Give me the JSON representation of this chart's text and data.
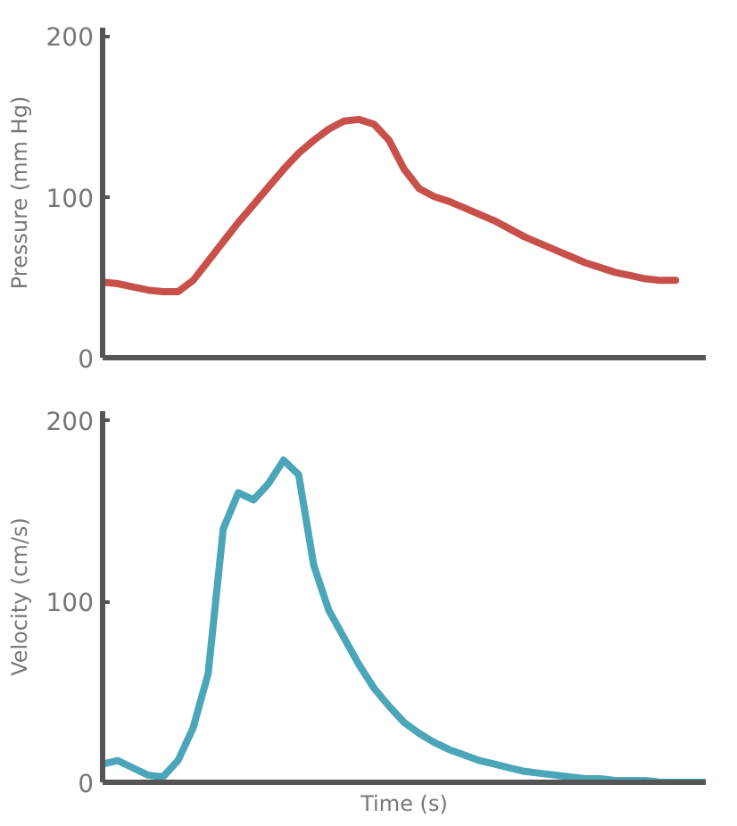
{
  "chart_data": [
    {
      "type": "line",
      "ylabel": "Pressure (mm Hg)",
      "categories": [
        null,
        null,
        null,
        null,
        null,
        null,
        null,
        null,
        null,
        null,
        null,
        null,
        null,
        null,
        null,
        null,
        null,
        null,
        null,
        null,
        null,
        null,
        null,
        null,
        null,
        null,
        null,
        null,
        null,
        null,
        null,
        null,
        null,
        null,
        null,
        null,
        null,
        null,
        null,
        null,
        null
      ],
      "ylim": [
        0,
        205
      ],
      "yticks": [
        0,
        100,
        200
      ],
      "series": [
        {
          "color": "#c8504a",
          "values": [
            47,
            46,
            44,
            42,
            41,
            41,
            48,
            60,
            72,
            84,
            95,
            106,
            117,
            127,
            135,
            142,
            147,
            148,
            145,
            135,
            117,
            105,
            100,
            97,
            93,
            89,
            85,
            80,
            75,
            71,
            67,
            63,
            59,
            56,
            53,
            51,
            49,
            48,
            48,
            null,
            null
          ]
        }
      ]
    },
    {
      "type": "line",
      "xlabel": "Time (s)",
      "ylabel": "Velocity (cm/s)",
      "categories": [
        null,
        null,
        null,
        null,
        null,
        null,
        null,
        null,
        null,
        null,
        null,
        null,
        null,
        null,
        null,
        null,
        null,
        null,
        null,
        null,
        null,
        null,
        null,
        null,
        null,
        null,
        null,
        null,
        null,
        null,
        null,
        null,
        null,
        null,
        null,
        null,
        null,
        null,
        null,
        null,
        null
      ],
      "ylim": [
        0,
        205
      ],
      "yticks": [
        0,
        100,
        200
      ],
      "series": [
        {
          "color": "#4aa6b8",
          "values": [
            10,
            12,
            8,
            4,
            3,
            12,
            30,
            60,
            140,
            160,
            156,
            165,
            178,
            170,
            120,
            95,
            80,
            65,
            52,
            42,
            33,
            27,
            22,
            18,
            15,
            12,
            10,
            8,
            6,
            5,
            4,
            3,
            2,
            2,
            1,
            1,
            1,
            0,
            0,
            0,
            0
          ]
        }
      ]
    }
  ]
}
